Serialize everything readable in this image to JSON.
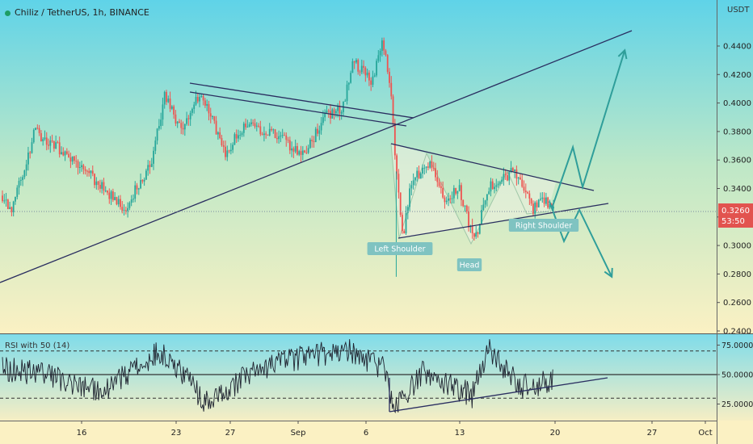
{
  "header": {
    "title": "Chiliz / TetherUS, 1h, BINANCE",
    "unit": "USDT"
  },
  "price_axis": {
    "ticks": [
      "0.4400",
      "0.4200",
      "0.4000",
      "0.3800",
      "0.3600",
      "0.3400",
      "0.3200",
      "0.3000",
      "0.2800",
      "0.2600",
      "0.2400"
    ],
    "current_price": "0.3260",
    "countdown": "53:50"
  },
  "rsi": {
    "title": "RSI with 50 (14)",
    "ticks": [
      "75.0000",
      "50.0000",
      "25.0000"
    ]
  },
  "time_axis": {
    "ticks": [
      "16",
      "23",
      "27",
      "Sep",
      "6",
      "13",
      "20",
      "27",
      "Oct"
    ]
  },
  "annotations": {
    "left_shoulder": "Left Shoulder",
    "head": "Head",
    "right_shoulder": "Right Shoulder"
  },
  "colors": {
    "up": "#26a69a",
    "down": "#ef5350",
    "line": "#2a2e60",
    "teal": "#2f9e9a",
    "label_bg": "#7fc3c1",
    "price_tag": "#e2534f"
  },
  "chart_data": [
    {
      "type": "candlestick",
      "title": "Chiliz / TetherUS, 1h, BINANCE",
      "ylabel": "USDT",
      "ylim": [
        0.24,
        0.455
      ],
      "last_price": 0.326,
      "anchors": [
        {
          "t": 0,
          "price": 0.335
        },
        {
          "t": 10,
          "price": 0.322
        },
        {
          "t": 40,
          "price": 0.38
        },
        {
          "t": 90,
          "price": 0.36
        },
        {
          "t": 150,
          "price": 0.325
        },
        {
          "t": 185,
          "price": 0.36
        },
        {
          "t": 200,
          "price": 0.405
        },
        {
          "t": 220,
          "price": 0.382
        },
        {
          "t": 245,
          "price": 0.407
        },
        {
          "t": 275,
          "price": 0.365
        },
        {
          "t": 300,
          "price": 0.385
        },
        {
          "t": 340,
          "price": 0.378
        },
        {
          "t": 370,
          "price": 0.362
        },
        {
          "t": 400,
          "price": 0.392
        },
        {
          "t": 420,
          "price": 0.395
        },
        {
          "t": 432,
          "price": 0.43
        },
        {
          "t": 455,
          "price": 0.415
        },
        {
          "t": 470,
          "price": 0.443
        },
        {
          "t": 480,
          "price": 0.408
        },
        {
          "t": 486,
          "price": 0.352
        },
        {
          "t": 494,
          "price": 0.305
        },
        {
          "t": 505,
          "price": 0.345
        },
        {
          "t": 528,
          "price": 0.36
        },
        {
          "t": 545,
          "price": 0.33
        },
        {
          "t": 563,
          "price": 0.342
        },
        {
          "t": 582,
          "price": 0.302
        },
        {
          "t": 600,
          "price": 0.34
        },
        {
          "t": 630,
          "price": 0.352
        },
        {
          "t": 655,
          "price": 0.326
        },
        {
          "t": 668,
          "price": 0.331
        },
        {
          "t": 680,
          "price": 0.326
        }
      ],
      "projection_up": [
        {
          "t": 678,
          "price": 0.326
        },
        {
          "t": 704,
          "price": 0.369
        },
        {
          "t": 716,
          "price": 0.341
        },
        {
          "t": 768,
          "price": 0.437
        }
      ],
      "projection_down": [
        {
          "t": 675,
          "price": 0.331
        },
        {
          "t": 693,
          "price": 0.303
        },
        {
          "t": 712,
          "price": 0.325
        },
        {
          "t": 752,
          "price": 0.278
        }
      ]
    },
    {
      "type": "line",
      "title": "RSI with 50 (14)",
      "ylim": [
        15,
        82
      ],
      "levels": [
        70,
        50,
        30
      ],
      "anchors": [
        {
          "t": 0,
          "value": 55
        },
        {
          "t": 60,
          "value": 50
        },
        {
          "t": 120,
          "value": 35
        },
        {
          "t": 195,
          "value": 70
        },
        {
          "t": 250,
          "value": 28
        },
        {
          "t": 330,
          "value": 58
        },
        {
          "t": 425,
          "value": 72
        },
        {
          "t": 470,
          "value": 55
        },
        {
          "t": 485,
          "value": 22
        },
        {
          "t": 520,
          "value": 52
        },
        {
          "t": 580,
          "value": 32
        },
        {
          "t": 600,
          "value": 72
        },
        {
          "t": 640,
          "value": 40
        },
        {
          "t": 680,
          "value": 44
        }
      ]
    }
  ]
}
